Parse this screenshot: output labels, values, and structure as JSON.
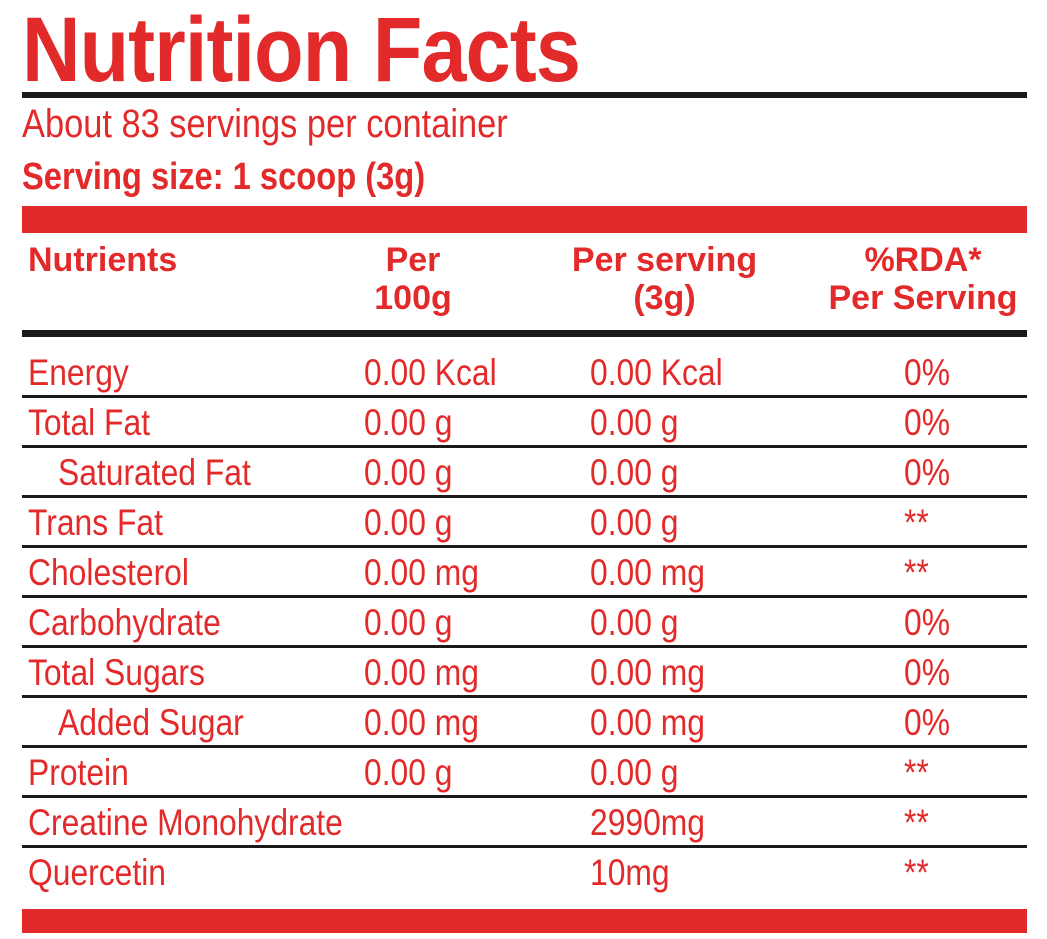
{
  "title": "Nutrition Facts",
  "servings_per_container": "About 83 servings per container",
  "serving_size": "Serving size: 1 scoop (3g)",
  "columns": {
    "nutrients": "Nutrients",
    "per_100g_line1": "Per",
    "per_100g_line2": "100g",
    "per_serving_line1": "Per serving",
    "per_serving_line2": "(3g)",
    "rda_line1": "%RDA*",
    "rda_line2": "Per Serving"
  },
  "rows": [
    {
      "name": "Energy",
      "per_100g": "0.00 Kcal",
      "per_serving": "0.00 Kcal",
      "rda": "0%"
    },
    {
      "name": "Total Fat",
      "per_100g": "0.00 g",
      "per_serving": "0.00 g",
      "rda": "0%"
    },
    {
      "name": "Saturated Fat",
      "per_100g": "0.00 g",
      "per_serving": "0.00 g",
      "rda": "0%"
    },
    {
      "name": "Trans Fat",
      "per_100g": "0.00 g",
      "per_serving": "0.00 g",
      "rda": "**"
    },
    {
      "name": "Cholesterol",
      "per_100g": "0.00 mg",
      "per_serving": "0.00 mg",
      "rda": "**"
    },
    {
      "name": "Carbohydrate",
      "per_100g": "0.00 g",
      "per_serving": "0.00 g",
      "rda": "0%"
    },
    {
      "name": "Total Sugars",
      "per_100g": "0.00 mg",
      "per_serving": "0.00 mg",
      "rda": "0%"
    },
    {
      "name": "Added Sugar",
      "per_100g": "0.00 mg",
      "per_serving": "0.00 mg",
      "rda": "0%"
    },
    {
      "name": "Protein",
      "per_100g": "0.00 g",
      "per_serving": "0.00 g",
      "rda": "**"
    },
    {
      "name": "Creatine Monohydrate",
      "per_100g": "",
      "per_serving": "2990mg",
      "rda": "**"
    },
    {
      "name": "Quercetin",
      "per_100g": "",
      "per_serving": "10mg",
      "rda": "**"
    }
  ],
  "colors": {
    "accent": "#e32a2a",
    "rule": "#1a1a1a"
  }
}
